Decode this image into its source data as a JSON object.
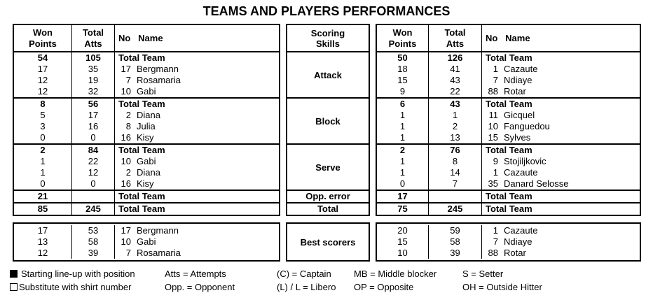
{
  "title": "TEAMS AND PLAYERS PERFORMANCES",
  "columns": {
    "won_line1": "Won",
    "won_line2": "Points",
    "atts_line1": "Total",
    "atts_line2": "Atts",
    "no_name": "No   Name"
  },
  "skills": {
    "header_line1": "Scoring",
    "header_line2": "Skills",
    "attack": "Attack",
    "block": "Block",
    "serve": "Serve",
    "opp_error": "Opp. error",
    "total": "Total",
    "best": "Best scorers"
  },
  "text_color": "#000000",
  "border_color": "#000000",
  "left": {
    "sections": [
      {
        "skill": "Attack",
        "rows": [
          {
            "won": "54",
            "atts": "105",
            "name": "Total Team"
          },
          {
            "won": "17",
            "atts": "35",
            "no": "17",
            "name": "Bergmann"
          },
          {
            "won": "12",
            "atts": "19",
            "no": "7",
            "name": "Rosamaria"
          },
          {
            "won": "12",
            "atts": "32",
            "no": "10",
            "name": "Gabi"
          }
        ]
      },
      {
        "skill": "Block",
        "rows": [
          {
            "won": "8",
            "atts": "56",
            "name": "Total Team"
          },
          {
            "won": "5",
            "atts": "17",
            "no": "2",
            "name": "Diana"
          },
          {
            "won": "3",
            "atts": "16",
            "no": "8",
            "name": "Julia"
          },
          {
            "won": "0",
            "atts": "0",
            "no": "16",
            "name": "Kisy"
          }
        ]
      },
      {
        "skill": "Serve",
        "rows": [
          {
            "won": "2",
            "atts": "84",
            "name": "Total Team"
          },
          {
            "won": "1",
            "atts": "22",
            "no": "10",
            "name": "Gabi"
          },
          {
            "won": "1",
            "atts": "12",
            "no": "2",
            "name": "Diana"
          },
          {
            "won": "0",
            "atts": "0",
            "no": "16",
            "name": "Kisy"
          }
        ]
      }
    ],
    "opp_error": {
      "won": "21",
      "atts": "",
      "name": "Total Team"
    },
    "total": {
      "won": "85",
      "atts": "245",
      "name": "Total Team"
    },
    "best": [
      {
        "won": "17",
        "atts": "53",
        "no": "17",
        "name": "Bergmann"
      },
      {
        "won": "13",
        "atts": "58",
        "no": "10",
        "name": "Gabi"
      },
      {
        "won": "12",
        "atts": "39",
        "no": "7",
        "name": "Rosamaria"
      }
    ]
  },
  "right": {
    "sections": [
      {
        "skill": "Attack",
        "rows": [
          {
            "won": "50",
            "atts": "126",
            "name": "Total Team"
          },
          {
            "won": "18",
            "atts": "41",
            "no": "1",
            "name": "Cazaute"
          },
          {
            "won": "15",
            "atts": "43",
            "no": "7",
            "name": "Ndiaye"
          },
          {
            "won": "9",
            "atts": "22",
            "no": "88",
            "name": "Rotar"
          }
        ]
      },
      {
        "skill": "Block",
        "rows": [
          {
            "won": "6",
            "atts": "43",
            "name": "Total Team"
          },
          {
            "won": "1",
            "atts": "1",
            "no": "11",
            "name": "Gicquel"
          },
          {
            "won": "1",
            "atts": "2",
            "no": "10",
            "name": "Fanguedou"
          },
          {
            "won": "1",
            "atts": "13",
            "no": "15",
            "name": "Sylves"
          }
        ]
      },
      {
        "skill": "Serve",
        "rows": [
          {
            "won": "2",
            "atts": "76",
            "name": "Total Team"
          },
          {
            "won": "1",
            "atts": "8",
            "no": "9",
            "name": "Stojiljkovic"
          },
          {
            "won": "1",
            "atts": "14",
            "no": "1",
            "name": "Cazaute"
          },
          {
            "won": "0",
            "atts": "7",
            "no": "35",
            "name": "Danard Selosse"
          }
        ]
      }
    ],
    "opp_error": {
      "won": "17",
      "atts": "",
      "name": "Total Team"
    },
    "total": {
      "won": "75",
      "atts": "245",
      "name": "Total Team"
    },
    "best": [
      {
        "won": "20",
        "atts": "59",
        "no": "1",
        "name": "Cazaute"
      },
      {
        "won": "15",
        "atts": "58",
        "no": "7",
        "name": "Ndiaye"
      },
      {
        "won": "10",
        "atts": "39",
        "no": "88",
        "name": "Rotar"
      }
    ]
  },
  "legend": {
    "row1": {
      "icon": "filled-square-icon",
      "c1": "Starting line-up with position",
      "c2": "Atts = Attempts",
      "c3": "(C) = Captain",
      "c4": "MB = Middle blocker",
      "c5": "S = Setter"
    },
    "row2": {
      "icon": "hollow-square-icon",
      "c1": "Substitute with shirt number",
      "c2": "Opp. = Opponent",
      "c3": "(L) / L = Libero",
      "c4": "OP = Opposite",
      "c5": "OH = Outside Hitter"
    }
  }
}
